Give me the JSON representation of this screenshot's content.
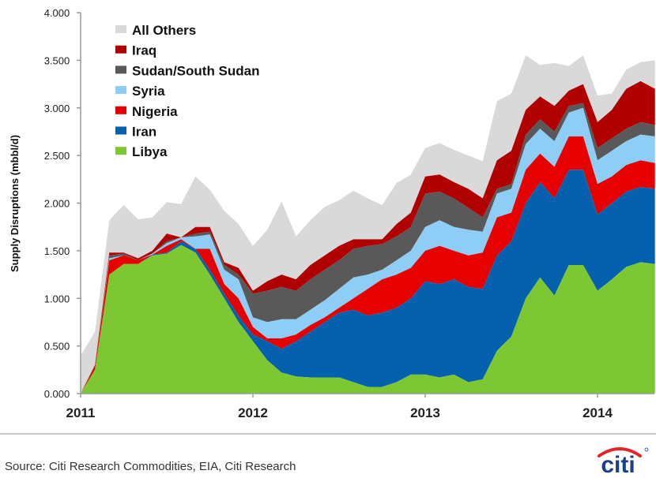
{
  "chart_data": {
    "type": "area",
    "stacked": true,
    "title": "",
    "xlabel": "",
    "ylabel": "Supply Disruptions (mbbl/d)",
    "ylim": [
      0,
      4
    ],
    "yticks": [
      "0.000",
      "0.500",
      "1.000",
      "1.500",
      "2.000",
      "2.500",
      "3.000",
      "3.500",
      "4.000"
    ],
    "xticks": [
      "2011",
      "2012",
      "2013",
      "2014"
    ],
    "x_start": "2011-01",
    "x_step": "month",
    "legend_position": "top-left",
    "colors": {
      "All Others": "#d9d9d9",
      "Iraq": "#b00000",
      "Sudan/South Sudan": "#595959",
      "Syria": "#8ecdf5",
      "Nigeria": "#e60000",
      "Iran": "#0561ad",
      "Libya": "#7dc832"
    },
    "legend": [
      "All Others",
      "Iraq",
      "Sudan/South Sudan",
      "Syria",
      "Nigeria",
      "Iran",
      "Libya"
    ],
    "cumulative_series_order": [
      "Libya",
      "Iran",
      "Nigeria",
      "Syria",
      "Sudan/South Sudan",
      "Iraq",
      "All Others"
    ],
    "series": [
      {
        "name": "Libya",
        "values": [
          0.0,
          0.25,
          1.25,
          1.36,
          1.36,
          1.45,
          1.47,
          1.56,
          1.48,
          1.25,
          1.0,
          0.75,
          0.55,
          0.35,
          0.22,
          0.18,
          0.17,
          0.17,
          0.17,
          0.12,
          0.07,
          0.07,
          0.12,
          0.2,
          0.2,
          0.17,
          0.2,
          0.12,
          0.15,
          0.45,
          0.6,
          1.0,
          1.22,
          1.03,
          1.35,
          1.35,
          1.08,
          1.2,
          1.33,
          1.38,
          1.36
        ]
      },
      {
        "name": "Iran",
        "values": [
          0.0,
          0.0,
          0.0,
          0.0,
          0.0,
          0.01,
          0.01,
          0.04,
          0.04,
          0.05,
          0.05,
          0.07,
          0.07,
          0.2,
          0.25,
          0.37,
          0.48,
          0.58,
          0.68,
          0.76,
          0.75,
          0.78,
          0.78,
          0.8,
          0.98,
          0.98,
          1.0,
          1.0,
          0.95,
          1.0,
          1.0,
          1.0,
          1.0,
          1.02,
          1.0,
          1.0,
          0.8,
          0.8,
          0.79,
          0.79,
          0.79
        ]
      },
      {
        "name": "Nigeria",
        "values": [
          0.0,
          0.03,
          0.15,
          0.09,
          0.04,
          0.0,
          0.07,
          0.02,
          0.0,
          0.22,
          0.1,
          0.18,
          0.08,
          0.03,
          0.11,
          0.07,
          0.07,
          0.05,
          0.05,
          0.12,
          0.28,
          0.35,
          0.35,
          0.32,
          0.32,
          0.4,
          0.3,
          0.33,
          0.38,
          0.4,
          0.3,
          0.35,
          0.3,
          0.33,
          0.35,
          0.35,
          0.32,
          0.28,
          0.28,
          0.28,
          0.27
        ]
      },
      {
        "name": "Syria",
        "values": [
          0.0,
          0.0,
          0.02,
          0.0,
          0.0,
          0.01,
          0.03,
          0.02,
          0.13,
          0.15,
          0.15,
          0.2,
          0.1,
          0.17,
          0.2,
          0.16,
          0.16,
          0.18,
          0.2,
          0.22,
          0.15,
          0.1,
          0.15,
          0.18,
          0.25,
          0.27,
          0.25,
          0.27,
          0.22,
          0.25,
          0.25,
          0.27,
          0.26,
          0.27,
          0.25,
          0.3,
          0.25,
          0.27,
          0.25,
          0.27,
          0.28
        ]
      },
      {
        "name": "Sudan/South Sudan",
        "values": [
          0.0,
          0.0,
          0.03,
          0.02,
          0.0,
          0.0,
          0.02,
          0.0,
          0.03,
          0.03,
          0.05,
          0.05,
          0.25,
          0.33,
          0.34,
          0.3,
          0.32,
          0.32,
          0.3,
          0.3,
          0.3,
          0.27,
          0.25,
          0.25,
          0.35,
          0.3,
          0.3,
          0.23,
          0.15,
          0.05,
          0.05,
          0.1,
          0.1,
          0.1,
          0.07,
          0.05,
          0.13,
          0.13,
          0.13,
          0.13,
          0.12
        ]
      },
      {
        "name": "Iraq",
        "values": [
          0.0,
          0.02,
          0.03,
          0.01,
          0.02,
          0.03,
          0.08,
          0.0,
          0.07,
          0.05,
          0.03,
          0.07,
          0.03,
          0.1,
          0.13,
          0.12,
          0.15,
          0.15,
          0.15,
          0.1,
          0.07,
          0.05,
          0.13,
          0.15,
          0.18,
          0.18,
          0.17,
          0.2,
          0.2,
          0.3,
          0.35,
          0.26,
          0.24,
          0.27,
          0.16,
          0.2,
          0.27,
          0.3,
          0.42,
          0.43,
          0.38
        ]
      },
      {
        "name": "All Others",
        "values": [
          0.4,
          0.35,
          0.34,
          0.5,
          0.41,
          0.35,
          0.33,
          0.35,
          0.53,
          0.39,
          0.54,
          0.46,
          0.47,
          0.54,
          0.77,
          0.45,
          0.47,
          0.51,
          0.48,
          0.51,
          0.43,
          0.36,
          0.43,
          0.4,
          0.3,
          0.33,
          0.34,
          0.35,
          0.39,
          0.62,
          0.6,
          0.57,
          0.33,
          0.45,
          0.26,
          0.3,
          0.28,
          0.17,
          0.2,
          0.2,
          0.3
        ]
      }
    ]
  },
  "footer": {
    "source": "Source: Citi Research Commodities, EIA, Citi Research",
    "logo_text": "citi"
  }
}
